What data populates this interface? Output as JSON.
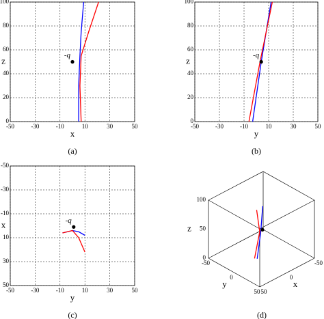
{
  "chart_data": [
    {
      "type": "line",
      "caption": "(a)",
      "xlabel": "x",
      "ylabel": "z",
      "xlim": [
        -50,
        50
      ],
      "ylim": [
        0,
        100
      ],
      "xticks": [
        -50,
        -30,
        -10,
        10,
        30,
        50
      ],
      "yticks": [
        0,
        20,
        40,
        60,
        80,
        100
      ],
      "grid": true,
      "series": [
        {
          "color": "#0000ff",
          "x": [
            5,
            5,
            6,
            7,
            9
          ],
          "values": [
            0,
            30,
            55,
            75,
            100
          ]
        },
        {
          "color": "#ff0000",
          "x": [
            7,
            6,
            7,
            13,
            21
          ],
          "values": [
            0,
            30,
            55,
            75,
            100
          ]
        }
      ],
      "point": {
        "x": 0,
        "y": 50,
        "label": "-q"
      }
    },
    {
      "type": "line",
      "caption": "(b)",
      "xlabel": "y",
      "ylabel": "z",
      "xlim": [
        -50,
        50
      ],
      "ylim": [
        0,
        100
      ],
      "xticks": [
        -50,
        -30,
        -10,
        10,
        30,
        50
      ],
      "yticks": [
        0,
        20,
        40,
        60,
        80,
        100
      ],
      "grid": true,
      "series": [
        {
          "color": "#0000ff",
          "x": [
            -3,
            4,
            12
          ],
          "values": [
            0,
            50,
            100
          ]
        },
        {
          "color": "#ff0000",
          "x": [
            -6,
            3,
            13
          ],
          "values": [
            0,
            50,
            100
          ]
        }
      ],
      "point": {
        "x": 4,
        "y": 50,
        "label": "-q"
      }
    },
    {
      "type": "line",
      "caption": "(c)",
      "xlabel": "y",
      "ylabel": "x",
      "xlim": [
        -50,
        50
      ],
      "ylim": [
        -50,
        50
      ],
      "y_inverted": true,
      "xticks": [
        -50,
        -30,
        -10,
        10,
        30,
        50
      ],
      "yticks": [
        -50,
        -30,
        -10,
        10,
        30,
        50
      ],
      "grid": true,
      "series": [
        {
          "color": "#0000ff",
          "x": [
            -8,
            0,
            5,
            10
          ],
          "values": [
            6,
            4,
            5,
            8
          ]
        },
        {
          "color": "#ff0000",
          "x": [
            -8,
            0,
            5,
            10
          ],
          "values": [
            6,
            4,
            10,
            22
          ]
        }
      ],
      "point": {
        "x": 1,
        "y": 1,
        "label": "-q"
      }
    },
    {
      "type": "line3d",
      "caption": "(d)",
      "xlabel": "x",
      "ylabel": "y",
      "zlabel": "z",
      "xlim": [
        -50,
        50
      ],
      "ylim": [
        -50,
        50
      ],
      "zlim": [
        0,
        100
      ],
      "xticks": [
        -50,
        0,
        50
      ],
      "yticks": [
        -50,
        0,
        50
      ],
      "zticks": [
        0,
        50,
        100
      ],
      "series": [
        {
          "color": "#0000ff",
          "x": [
            5,
            5,
            9
          ],
          "y": [
            -3,
            4,
            12
          ],
          "values": [
            0,
            50,
            100
          ]
        },
        {
          "color": "#ff0000",
          "x": [
            7,
            6,
            21
          ],
          "y": [
            -6,
            3,
            13
          ],
          "values": [
            0,
            50,
            100
          ]
        }
      ],
      "point": {
        "x": 0,
        "y": 2,
        "z": 50
      }
    }
  ]
}
